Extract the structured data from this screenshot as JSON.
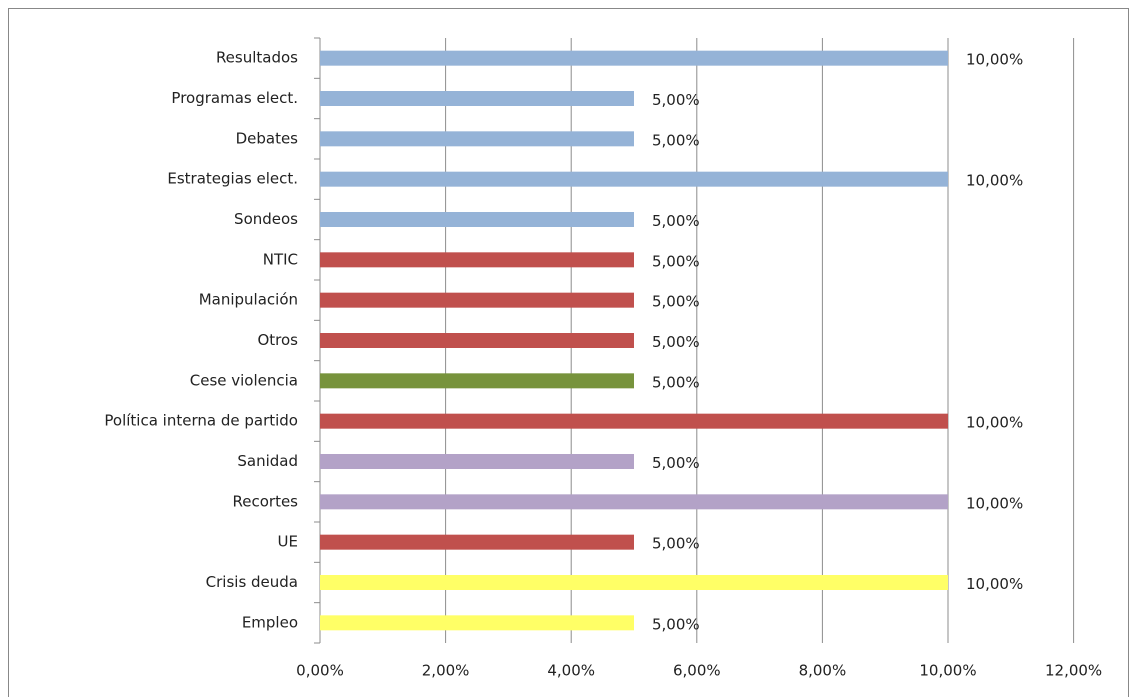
{
  "chart_data": {
    "type": "barh",
    "categories": [
      "Resultados",
      "Programas elect.",
      "Debates",
      "Estrategias elect.",
      "Sondeos",
      "NTIC",
      "Manipulación",
      "Otros",
      "Cese violencia",
      "Política interna de partido",
      "Sanidad",
      "Recortes",
      "UE",
      "Crisis deuda",
      "Empleo"
    ],
    "values": [
      10,
      5,
      5,
      10,
      5,
      5,
      5,
      5,
      5,
      10,
      5,
      10,
      5,
      10,
      5
    ],
    "value_labels": [
      "10,00%",
      "5,00%",
      "5,00%",
      "10,00%",
      "5,00%",
      "5,00%",
      "5,00%",
      "5,00%",
      "5,00%",
      "10,00%",
      "5,00%",
      "10,00%",
      "5,00%",
      "10,00%",
      "5,00%"
    ],
    "colors": [
      "#95b3d7",
      "#95b3d7",
      "#95b3d7",
      "#95b3d7",
      "#95b3d7",
      "#c0504d",
      "#c0504d",
      "#c0504d",
      "#77933c",
      "#c0504d",
      "#b3a2c7",
      "#b3a2c7",
      "#c0504d",
      "#ffff66",
      "#ffff66"
    ],
    "xlim": [
      0,
      12
    ],
    "xticks": [
      {
        "value": 0,
        "label": "0,00%"
      },
      {
        "value": 2,
        "label": "2,00%"
      },
      {
        "value": 4,
        "label": "4,00%"
      },
      {
        "value": 6,
        "label": "6,00%"
      },
      {
        "value": 8,
        "label": "8,00%"
      },
      {
        "value": 10,
        "label": "10,00%"
      },
      {
        "value": 12,
        "label": "12,00%"
      }
    ],
    "grid": true
  }
}
